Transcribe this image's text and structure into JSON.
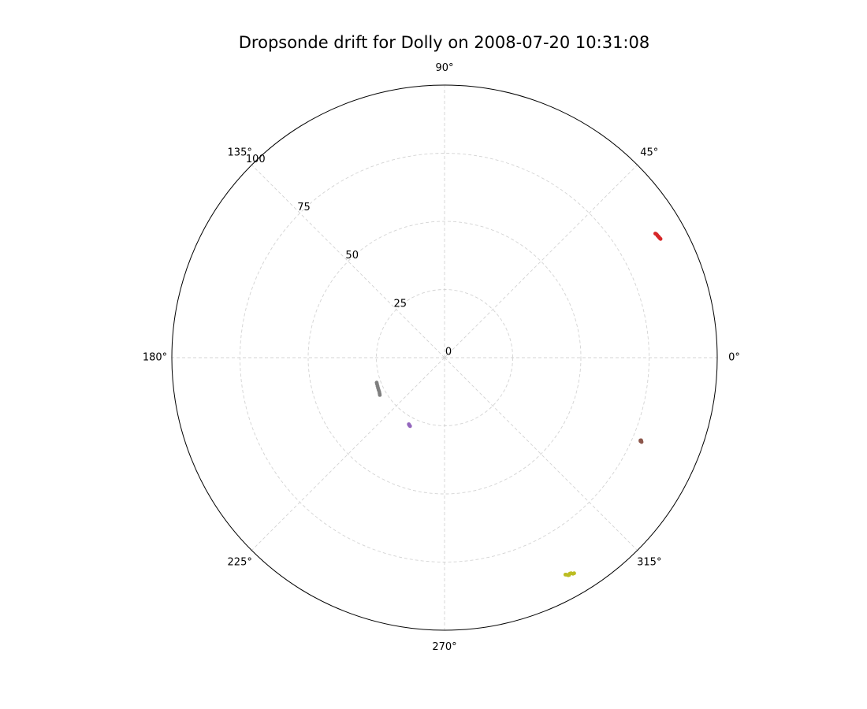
{
  "chart_data": {
    "type": "scatter",
    "projection": "polar",
    "title": "Dropsonde drift for Dolly on 2008-07-20 10:31:08",
    "theta_unit": "degrees",
    "theta_ticks": [
      0,
      45,
      90,
      135,
      180,
      225,
      270,
      315
    ],
    "theta_tick_labels": [
      "0°",
      "45°",
      "90°",
      "135°",
      "180°",
      "225°",
      "270°",
      "315°"
    ],
    "r_ticks": [
      0,
      25,
      50,
      75,
      100
    ],
    "r_tick_labels": [
      "0",
      "25",
      "50",
      "75",
      "100"
    ],
    "rlim": [
      0,
      100
    ],
    "r_label_angle_deg": 135,
    "grid": true,
    "colors": {
      "axis": "#000000",
      "grid": "#d3d3d3",
      "red": "#d62728",
      "brown": "#8c564b",
      "olive": "#bcbd22",
      "purple": "#9467bd",
      "gray": "#7f7f7f"
    },
    "series": [
      {
        "color": "#d62728",
        "points": [
          {
            "theta": 30.5,
            "r": 89.7
          },
          {
            "theta": 30.3,
            "r": 89.9
          },
          {
            "theta": 30.0,
            "r": 90.0
          },
          {
            "theta": 29.8,
            "r": 90.0
          },
          {
            "theta": 29.6,
            "r": 90.1
          },
          {
            "theta": 29.4,
            "r": 90.2
          },
          {
            "theta": 29.2,
            "r": 90.2
          },
          {
            "theta": 29.0,
            "r": 90.3
          },
          {
            "theta": 28.8,
            "r": 90.4
          }
        ]
      },
      {
        "color": "#8c564b",
        "points": [
          {
            "theta": 336.9,
            "r": 78.1
          },
          {
            "theta": 337.0,
            "r": 78.4
          },
          {
            "theta": 337.2,
            "r": 78.2
          },
          {
            "theta": 336.8,
            "r": 78.6
          },
          {
            "theta": 337.1,
            "r": 78.0
          },
          {
            "theta": 337.0,
            "r": 78.3
          }
        ]
      },
      {
        "color": "#bcbd22",
        "points": [
          {
            "theta": 299.1,
            "r": 91.1
          },
          {
            "theta": 299.3,
            "r": 91.3
          },
          {
            "theta": 299.6,
            "r": 91.8
          },
          {
            "theta": 299.8,
            "r": 91.9
          },
          {
            "theta": 300.1,
            "r": 91.6
          },
          {
            "theta": 300.4,
            "r": 91.7
          },
          {
            "theta": 300.7,
            "r": 92.2
          },
          {
            "theta": 301.0,
            "r": 92.3
          }
        ]
      },
      {
        "color": "#9467bd",
        "points": [
          {
            "theta": 243.3,
            "r": 28.1
          },
          {
            "theta": 242.8,
            "r": 28.0
          },
          {
            "theta": 242.3,
            "r": 27.9
          },
          {
            "theta": 241.8,
            "r": 27.7
          }
        ]
      },
      {
        "color": "#7f7f7f",
        "points": [
          {
            "theta": 200.2,
            "r": 26.5
          },
          {
            "theta": 201.5,
            "r": 26.6
          },
          {
            "theta": 203.0,
            "r": 26.7
          },
          {
            "theta": 204.5,
            "r": 26.8
          },
          {
            "theta": 206.0,
            "r": 26.9
          },
          {
            "theta": 207.4,
            "r": 27.0
          },
          {
            "theta": 208.9,
            "r": 27.2
          },
          {
            "theta": 210.0,
            "r": 27.4
          }
        ]
      }
    ]
  }
}
